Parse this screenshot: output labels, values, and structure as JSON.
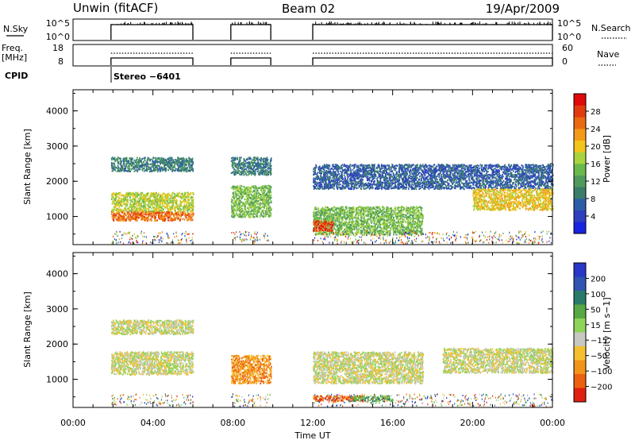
{
  "header": {
    "station": "Unwin (fitACF)",
    "beam": "Beam 02",
    "date": "19/Apr/2009"
  },
  "params": {
    "nsky_label": "N.Sky",
    "nsky_ticks": [
      "10^5",
      "10^0"
    ],
    "nsearch_label": "N.Search",
    "nsearch_ticks": [
      "10^5",
      "10^0"
    ],
    "freq_label_1": "Freq.",
    "freq_label_2": "[MHz]",
    "freq_ticks": [
      "18",
      "8"
    ],
    "nave_label": "Nave",
    "nave_ticks": [
      "60",
      "0"
    ],
    "cpid_label": "CPID",
    "cpid_value": "Stereo −6401"
  },
  "chart_data": [
    {
      "type": "heatmap",
      "name": "power",
      "ylabel": "Slant Range [km]",
      "xlabel": "",
      "xlim": [
        0,
        24
      ],
      "ylim": [
        200,
        4600
      ],
      "yticks": [
        "1000",
        "2000",
        "3000",
        "4000"
      ],
      "colorbar": {
        "title": "Power [dB]",
        "ticks": [
          "4",
          "8",
          "12",
          "16",
          "20",
          "24",
          "28"
        ],
        "colors": [
          "#1a23e0",
          "#2f3fc0",
          "#2c5ea8",
          "#3b7d6a",
          "#4f9a5c",
          "#6ab94d",
          "#a9d43f",
          "#f2c51c",
          "#f39a17",
          "#ea6a12",
          "#e33b10",
          "#e00a0a"
        ]
      },
      "scatter_regions": [
        {
          "t0": 1.9,
          "t1": 6.0,
          "r0": 2300,
          "r1": 2700,
          "level": 3
        },
        {
          "t0": 1.9,
          "t1": 6.0,
          "r0": 1150,
          "r1": 1700,
          "level": 6
        },
        {
          "t0": 1.9,
          "t1": 6.0,
          "r0": 900,
          "r1": 1150,
          "level": 9
        },
        {
          "t0": 7.9,
          "t1": 9.9,
          "r0": 2200,
          "r1": 2700,
          "level": 3
        },
        {
          "t0": 7.9,
          "t1": 9.9,
          "r0": 1000,
          "r1": 1900,
          "level": 5
        },
        {
          "t0": 12.0,
          "t1": 24.0,
          "r0": 1800,
          "r1": 2500,
          "level": 2
        },
        {
          "t0": 12.0,
          "t1": 17.5,
          "r0": 500,
          "r1": 1300,
          "level": 5
        },
        {
          "t0": 12.0,
          "t1": 13.0,
          "r0": 600,
          "r1": 900,
          "level": 10
        },
        {
          "t0": 20.0,
          "t1": 24.0,
          "r0": 1200,
          "r1": 1800,
          "level": 7
        }
      ]
    },
    {
      "type": "heatmap",
      "name": "velocity",
      "ylabel": "Slant Range [km]",
      "xlabel": "Time UT",
      "xlim": [
        0,
        24
      ],
      "ylim": [
        200,
        4600
      ],
      "xticks": [
        "00:00",
        "04:00",
        "08:00",
        "12:00",
        "16:00",
        "20:00",
        "00:00"
      ],
      "yticks": [
        "1000",
        "2000",
        "3000",
        "4000"
      ],
      "colorbar": {
        "title": "Velocity [m s−1]",
        "ticks": [
          "200",
          "100",
          "50",
          "15",
          "−15",
          "−50",
          "−100",
          "−200"
        ],
        "colors": [
          "#2a37c8",
          "#2f55b0",
          "#2a7a6a",
          "#57a844",
          "#8ed45a",
          "#c8c8c2",
          "#f5c030",
          "#f29418",
          "#ec6010",
          "#e02010"
        ]
      },
      "scatter_regions": [
        {
          "t0": 1.9,
          "t1": 6.0,
          "r0": 1150,
          "r1": 1800,
          "level": 5
        },
        {
          "t0": 1.9,
          "t1": 6.0,
          "r0": 2300,
          "r1": 2700,
          "level": 5
        },
        {
          "t0": 7.9,
          "t1": 9.9,
          "r0": 900,
          "r1": 1700,
          "level": 7
        },
        {
          "t0": 12.0,
          "t1": 17.5,
          "r0": 900,
          "r1": 1800,
          "level": 5
        },
        {
          "t0": 12.0,
          "t1": 14.5,
          "r0": 400,
          "r1": 550,
          "level": 8
        },
        {
          "t0": 14.0,
          "t1": 16.0,
          "r0": 400,
          "r1": 550,
          "level": 3
        },
        {
          "t0": 18.5,
          "t1": 24.0,
          "r0": 1200,
          "r1": 1900,
          "level": 5
        }
      ]
    }
  ]
}
